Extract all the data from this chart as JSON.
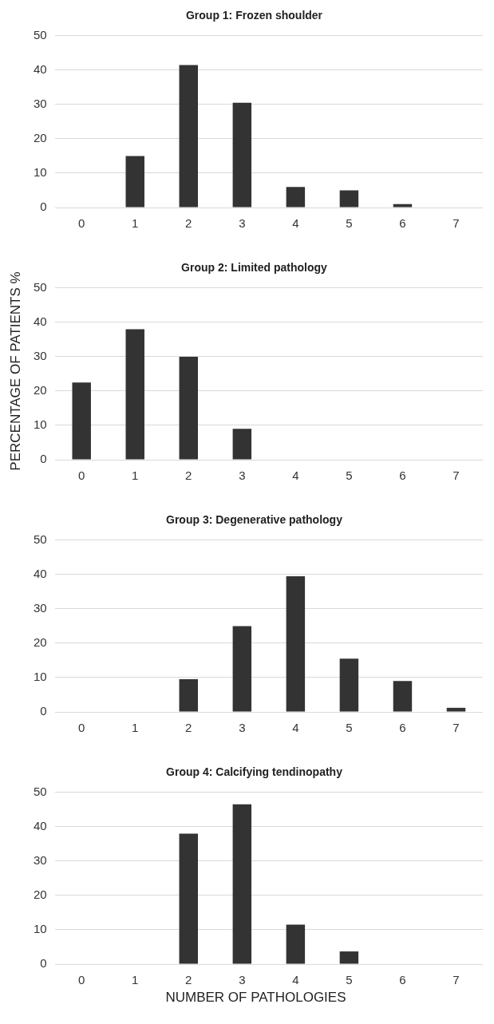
{
  "chart_data": [
    {
      "type": "bar",
      "title": "Group 1: Frozen shoulder",
      "categories": [
        "0",
        "1",
        "2",
        "3",
        "4",
        "5",
        "6",
        "7"
      ],
      "values": [
        0,
        15,
        41.5,
        30.5,
        6,
        5,
        1,
        0
      ],
      "color": "#333333",
      "ylim": [
        0,
        50
      ],
      "yticks": [
        0,
        10,
        20,
        30,
        40,
        50
      ],
      "grid": "y"
    },
    {
      "type": "bar",
      "title": "Group 2: Limited pathology",
      "ylabel": "PERCENTAGE OF PATIENTS %",
      "categories": [
        "0",
        "1",
        "2",
        "3",
        "4",
        "5",
        "6",
        "7"
      ],
      "values": [
        22.5,
        38,
        30,
        9,
        0,
        0,
        0,
        0
      ],
      "color": "#333333",
      "ylim": [
        0,
        50
      ],
      "yticks": [
        0,
        10,
        20,
        30,
        40,
        50
      ],
      "grid": "y"
    },
    {
      "type": "bar",
      "title": "Group 3: Degenerative pathology",
      "categories": [
        "0",
        "1",
        "2",
        "3",
        "4",
        "5",
        "6",
        "7"
      ],
      "values": [
        0,
        0,
        9.5,
        25,
        39.5,
        15.5,
        9,
        1.2
      ],
      "color": "#333333",
      "ylim": [
        0,
        50
      ],
      "yticks": [
        0,
        10,
        20,
        30,
        40,
        50
      ],
      "grid": "y"
    },
    {
      "type": "bar",
      "title": "Group 4: Calcifying tendinopathy",
      "xlabel": "NUMBER OF PATHOLOGIES",
      "categories": [
        "0",
        "1",
        "2",
        "3",
        "4",
        "5",
        "6",
        "7"
      ],
      "values": [
        0,
        0,
        38,
        46.5,
        11.5,
        3.7,
        0,
        0
      ],
      "color": "#333333",
      "ylim": [
        0,
        50
      ],
      "yticks": [
        0,
        10,
        20,
        30,
        40,
        50
      ],
      "grid": "y"
    }
  ]
}
